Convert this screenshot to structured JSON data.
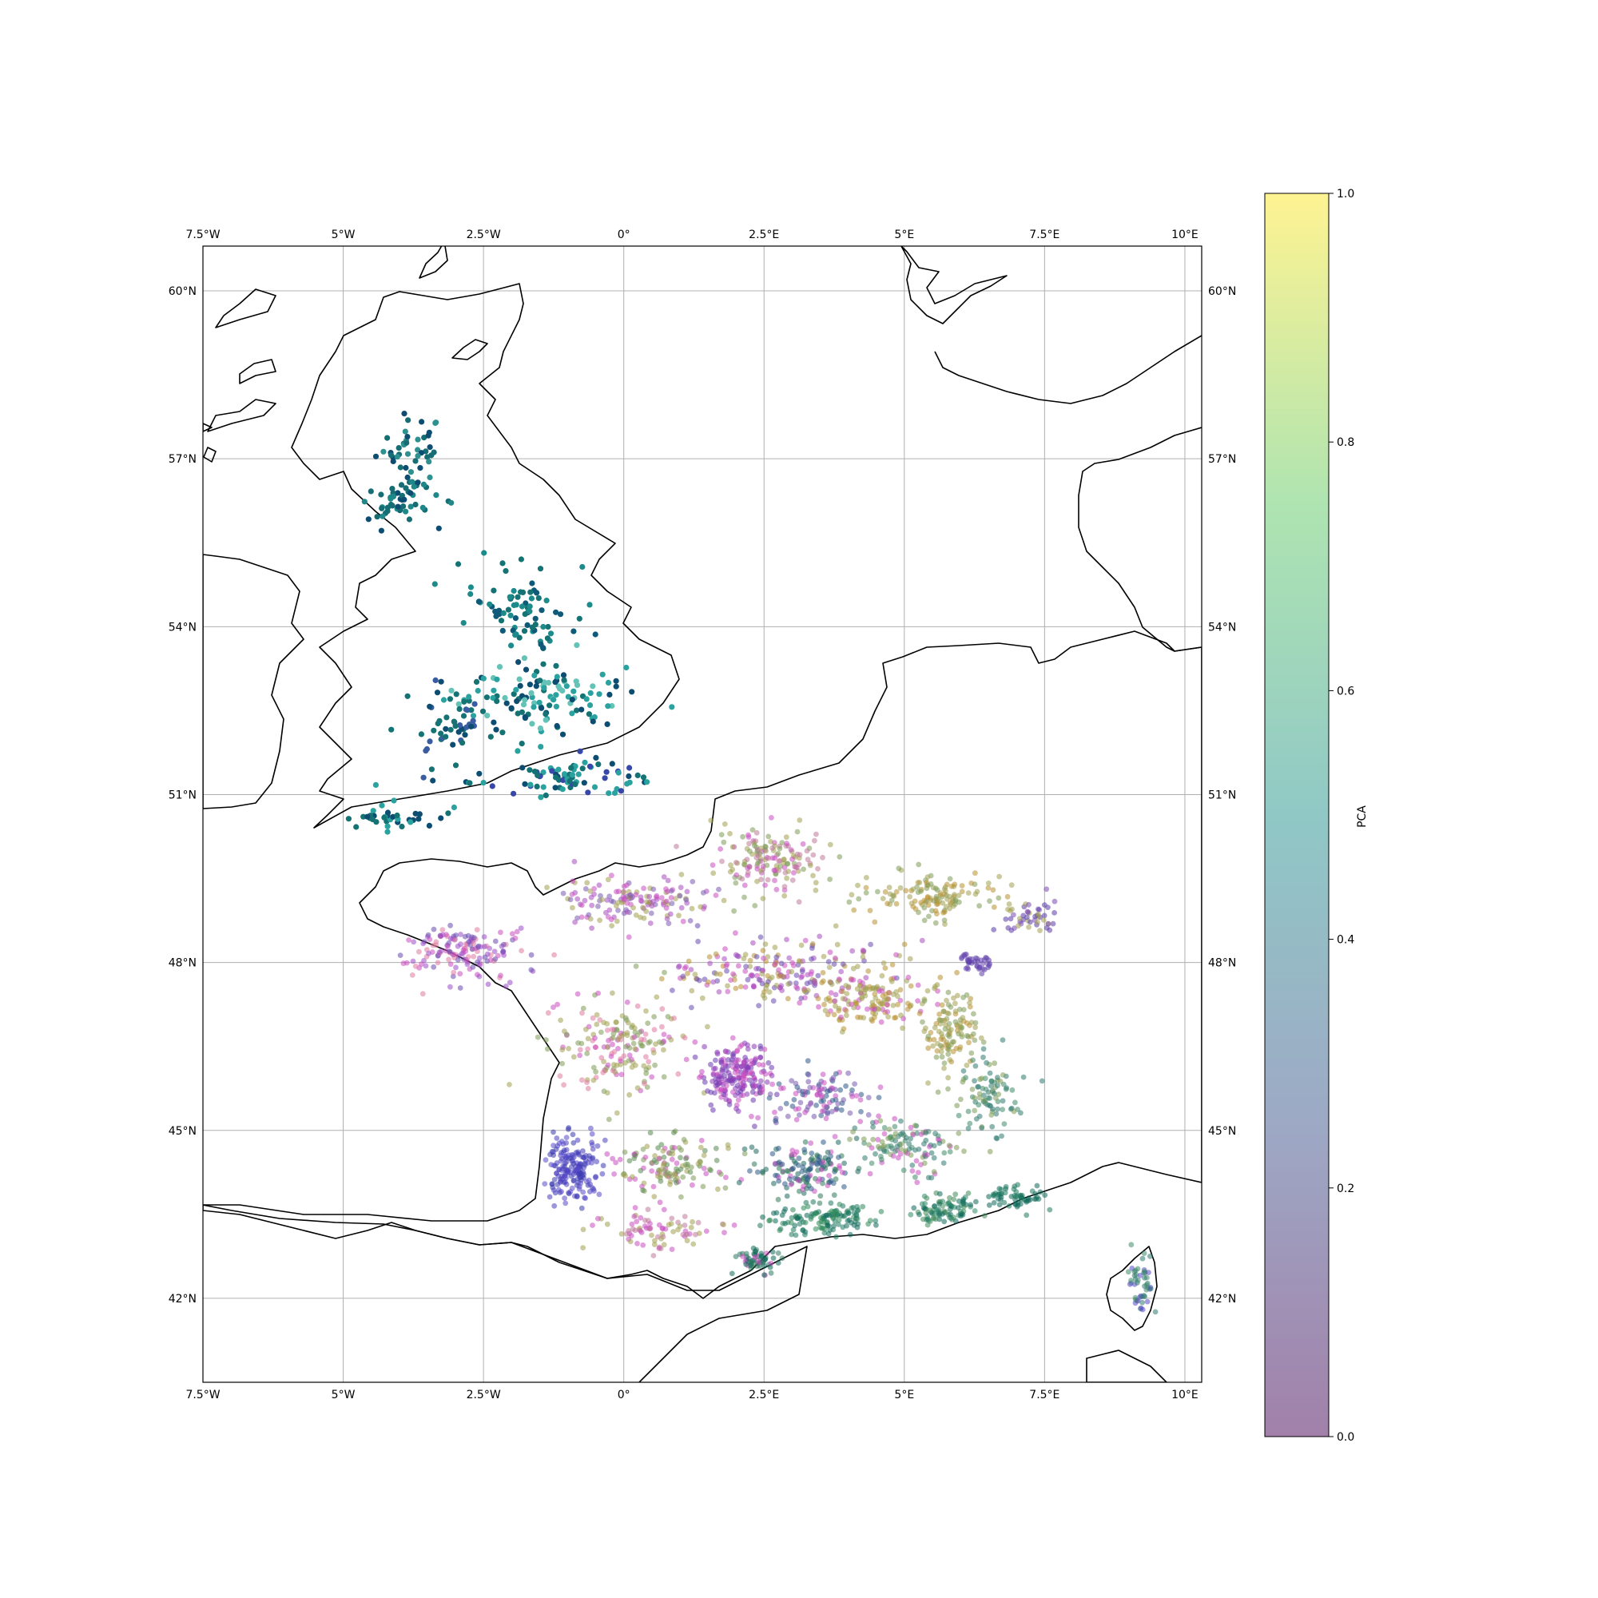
{
  "figure": {
    "colorbar_label": "PCA",
    "colorbar_ticks": [
      "0.0",
      "0.2",
      "0.4",
      "0.6",
      "0.8",
      "1.0"
    ],
    "lon_ticks": [
      "7.5°W",
      "5°W",
      "2.5°W",
      "0°",
      "2.5°E",
      "5°E",
      "7.5°E",
      "10°E"
    ],
    "lat_ticks": [
      "60°N",
      "57°N",
      "54°N",
      "51°N",
      "48°N",
      "45°N",
      "42°N"
    ]
  },
  "chart_data": {
    "type": "scatter",
    "projection": "PlateCarree",
    "xlim": [
      -7.5,
      10.3
    ],
    "ylim": [
      40.5,
      60.8
    ],
    "x_unit": "longitude (degrees)",
    "y_unit": "latitude (degrees)",
    "gridlines": true,
    "colorbar": {
      "label": "PCA",
      "range": [
        0.0,
        1.0
      ],
      "position": "right",
      "colormap": "viridis (alpha 0.5)"
    },
    "series": [
      {
        "marker_alpha": 1.0,
        "clusters": [
          {
            "lon": -3.8,
            "lat": 57.2,
            "spread": [
              0.6,
              0.6
            ],
            "count": 45,
            "colors": [
              "#0e4d72",
              "#166e74",
              "#2f9090"
            ]
          },
          {
            "lon": -4.0,
            "lat": 56.2,
            "spread": [
              0.7,
              0.4
            ],
            "count": 50,
            "colors": [
              "#166e74",
              "#1f8989",
              "#0e4d72"
            ]
          },
          {
            "lon": -1.8,
            "lat": 54.3,
            "spread": [
              0.9,
              0.8
            ],
            "count": 80,
            "colors": [
              "#157374",
              "#1d8b8b",
              "#0f5a78"
            ]
          },
          {
            "lon": -1.6,
            "lat": 52.7,
            "spread": [
              1.5,
              0.7
            ],
            "count": 130,
            "colors": [
              "#157374",
              "#2aa3a0",
              "#0e4d72",
              "#65c2b6"
            ]
          },
          {
            "lon": -3.2,
            "lat": 52.3,
            "spread": [
              0.7,
              0.7
            ],
            "count": 50,
            "colors": [
              "#157374",
              "#0e4d72",
              "#3a5ca0"
            ]
          },
          {
            "lon": -1.0,
            "lat": 51.3,
            "spread": [
              1.7,
              0.3
            ],
            "count": 80,
            "colors": [
              "#157374",
              "#0e4d72",
              "#3848a8",
              "#2aa3a0"
            ]
          },
          {
            "lon": -4.3,
            "lat": 50.6,
            "spread": [
              1.0,
              0.3
            ],
            "count": 35,
            "colors": [
              "#157374",
              "#0e4d72",
              "#2aa3a0"
            ]
          }
        ]
      },
      {
        "marker_alpha": 0.55,
        "clusters": [
          {
            "lon": -2.9,
            "lat": 48.2,
            "spread": [
              1.2,
              0.45
            ],
            "count": 150,
            "colors": [
              "#c94cc0",
              "#9b4cc9",
              "#e07aa0",
              "#6a4ab0"
            ]
          },
          {
            "lon": 0.2,
            "lat": 49.1,
            "spread": [
              1.4,
              0.4
            ],
            "count": 150,
            "colors": [
              "#c94cc0",
              "#a84cc0",
              "#a0a050",
              "#7a5ab0"
            ]
          },
          {
            "lon": 2.6,
            "lat": 49.8,
            "spread": [
              1.0,
              0.6
            ],
            "count": 160,
            "colors": [
              "#a0a050",
              "#c94cc0",
              "#7d9a55",
              "#c07a9a"
            ]
          },
          {
            "lon": 5.6,
            "lat": 49.2,
            "spread": [
              1.2,
              0.4
            ],
            "count": 130,
            "colors": [
              "#b89030",
              "#a0a050",
              "#7d9a55"
            ]
          },
          {
            "lon": 7.2,
            "lat": 48.8,
            "spread": [
              0.5,
              0.3
            ],
            "count": 50,
            "colors": [
              "#5a3aa8",
              "#7a4ab0",
              "#a0a050"
            ]
          },
          {
            "lon": 6.3,
            "lat": 48.0,
            "spread": [
              0.3,
              0.15
            ],
            "count": 40,
            "colors": [
              "#5a3aa8",
              "#6a4ab0"
            ]
          },
          {
            "lon": 2.8,
            "lat": 47.8,
            "spread": [
              2.0,
              0.6
            ],
            "count": 220,
            "colors": [
              "#6a4ab0",
              "#c94cc0",
              "#a84cc0",
              "#a0a050",
              "#b89030"
            ]
          },
          {
            "lon": 4.4,
            "lat": 47.3,
            "spread": [
              1.0,
              0.5
            ],
            "count": 140,
            "colors": [
              "#b89030",
              "#a0a050",
              "#c94cc0"
            ]
          },
          {
            "lon": 5.8,
            "lat": 46.8,
            "spread": [
              0.5,
              0.8
            ],
            "count": 120,
            "colors": [
              "#b89030",
              "#7d9a55",
              "#a0a050"
            ]
          },
          {
            "lon": 6.5,
            "lat": 45.6,
            "spread": [
              0.5,
              0.7
            ],
            "count": 90,
            "colors": [
              "#2f7a70",
              "#3f8a6a",
              "#7d9a55"
            ]
          },
          {
            "lon": 0.0,
            "lat": 46.5,
            "spread": [
              1.2,
              0.8
            ],
            "count": 180,
            "colors": [
              "#a0a050",
              "#c94cc0",
              "#7d9a55",
              "#e07aa0"
            ]
          },
          {
            "lon": 2.0,
            "lat": 46.0,
            "spread": [
              0.6,
              0.6
            ],
            "count": 200,
            "colors": [
              "#6a3ab0",
              "#8a3ab8",
              "#c94cc0"
            ]
          },
          {
            "lon": 3.5,
            "lat": 45.6,
            "spread": [
              0.9,
              0.5
            ],
            "count": 110,
            "colors": [
              "#c94cc0",
              "#7a5ab0",
              "#2f5a8a"
            ]
          },
          {
            "lon": -0.9,
            "lat": 44.3,
            "spread": [
              0.5,
              0.55
            ],
            "count": 180,
            "colors": [
              "#4a40c0",
              "#5a4ac8",
              "#3a3ab0"
            ]
          },
          {
            "lon": 0.8,
            "lat": 44.4,
            "spread": [
              0.9,
              0.5
            ],
            "count": 130,
            "colors": [
              "#7d9a55",
              "#a0a050",
              "#c94cc0",
              "#5a8a50"
            ]
          },
          {
            "lon": 0.6,
            "lat": 43.2,
            "spread": [
              1.1,
              0.3
            ],
            "count": 80,
            "colors": [
              "#c07a9a",
              "#a0a050",
              "#c94cc0"
            ]
          },
          {
            "lon": 3.3,
            "lat": 44.3,
            "spread": [
              0.9,
              0.5
            ],
            "count": 150,
            "colors": [
              "#2f5a8a",
              "#2f7a5a",
              "#1f6a60",
              "#c94cc0"
            ]
          },
          {
            "lon": 3.5,
            "lat": 43.4,
            "spread": [
              1.0,
              0.25
            ],
            "count": 130,
            "colors": [
              "#0f6a5a",
              "#1f7a60",
              "#2f8a5a"
            ]
          },
          {
            "lon": 2.4,
            "lat": 42.7,
            "spread": [
              0.4,
              0.25
            ],
            "count": 60,
            "colors": [
              "#0f6a5a",
              "#2f7a60",
              "#c94cc0"
            ]
          },
          {
            "lon": 5.7,
            "lat": 43.6,
            "spread": [
              0.5,
              0.3
            ],
            "count": 90,
            "colors": [
              "#0f6a5a",
              "#2f8a6a",
              "#3f8a5a"
            ]
          },
          {
            "lon": 7.0,
            "lat": 43.8,
            "spread": [
              0.5,
              0.25
            ],
            "count": 60,
            "colors": [
              "#0f6a5a",
              "#1f7a60"
            ]
          },
          {
            "lon": 5.0,
            "lat": 44.7,
            "spread": [
              0.9,
              0.5
            ],
            "count": 120,
            "colors": [
              "#2f7a70",
              "#7d9a55",
              "#3f8a6a",
              "#c94cc0"
            ]
          },
          {
            "lon": 9.2,
            "lat": 42.2,
            "spread": [
              0.25,
              0.5
            ],
            "count": 50,
            "colors": [
              "#3f8a6a",
              "#2f7a70",
              "#5a4ac8"
            ]
          }
        ]
      }
    ]
  }
}
